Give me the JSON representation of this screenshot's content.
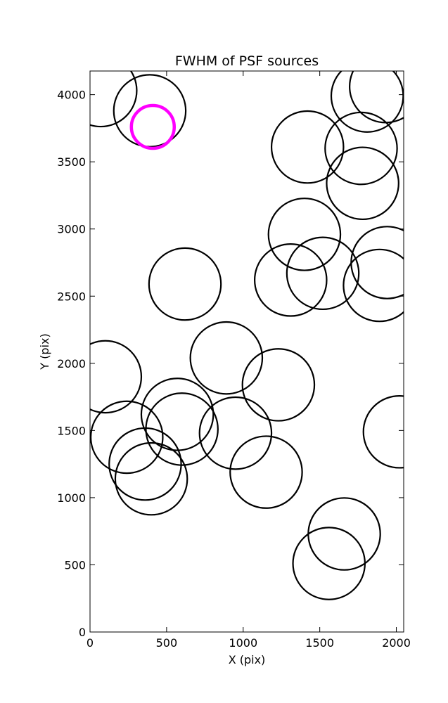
{
  "chart_data": {
    "type": "scatter",
    "title": "FWHM of PSF sources",
    "xlabel": "X (pix)",
    "ylabel": "Y (pix)",
    "xlim": [
      0,
      2048
    ],
    "ylim": [
      0,
      4176
    ],
    "xticks": [
      0,
      500,
      1000,
      1500,
      2000
    ],
    "yticks": [
      0,
      500,
      1000,
      1500,
      2000,
      2500,
      3000,
      3500,
      4000
    ],
    "xtick_labels": [
      "0",
      "500",
      "1000",
      "1500",
      "2000"
    ],
    "ytick_labels": [
      "0",
      "500",
      "1000",
      "1500",
      "2000",
      "2500",
      "3000",
      "3500",
      "4000"
    ],
    "grid": false,
    "marker": "circle",
    "marker_radius_pix": 235,
    "colors": {
      "sources": "#000000",
      "highlight": "#ff00ff"
    },
    "series": [
      {
        "role": "sources",
        "points": [
          {
            "x": 70,
            "y": 4030
          },
          {
            "x": 390,
            "y": 3880
          },
          {
            "x": 1810,
            "y": 3990
          },
          {
            "x": 1930,
            "y": 4060
          },
          {
            "x": 1420,
            "y": 3610
          },
          {
            "x": 1770,
            "y": 3600
          },
          {
            "x": 1780,
            "y": 3340
          },
          {
            "x": 1400,
            "y": 2960
          },
          {
            "x": 1940,
            "y": 2750
          },
          {
            "x": 1520,
            "y": 2670
          },
          {
            "x": 1310,
            "y": 2620
          },
          {
            "x": 1890,
            "y": 2580
          },
          {
            "x": 620,
            "y": 2590
          },
          {
            "x": 890,
            "y": 2040
          },
          {
            "x": 100,
            "y": 1900
          },
          {
            "x": 1230,
            "y": 1840
          },
          {
            "x": 570,
            "y": 1620
          },
          {
            "x": 600,
            "y": 1510
          },
          {
            "x": 950,
            "y": 1480
          },
          {
            "x": 240,
            "y": 1450
          },
          {
            "x": 2020,
            "y": 1490
          },
          {
            "x": 360,
            "y": 1250
          },
          {
            "x": 400,
            "y": 1140
          },
          {
            "x": 1150,
            "y": 1190
          },
          {
            "x": 1660,
            "y": 730
          },
          {
            "x": 1560,
            "y": 510
          }
        ]
      },
      {
        "role": "highlight",
        "marker_radius_pix": 140,
        "points": [
          {
            "x": 410,
            "y": 3760
          }
        ]
      }
    ]
  }
}
